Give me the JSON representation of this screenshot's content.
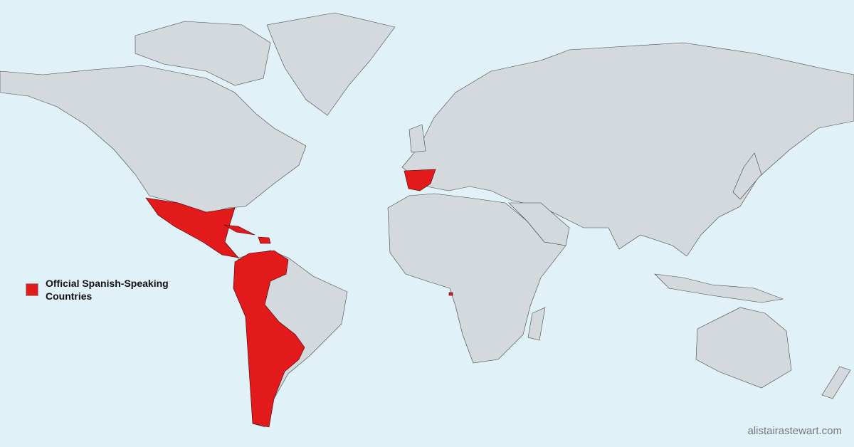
{
  "map": {
    "highlight_color": "#e31a1c",
    "land_color": "#d3d9dc",
    "ocean_color": "#e0f2f8",
    "highlighted_countries": [
      "Mexico",
      "Guatemala",
      "Honduras",
      "El Salvador",
      "Nicaragua",
      "Costa Rica",
      "Panama",
      "Cuba",
      "Dominican Republic",
      "Colombia",
      "Venezuela",
      "Ecuador",
      "Peru",
      "Bolivia",
      "Paraguay",
      "Chile",
      "Argentina",
      "Uruguay",
      "Spain",
      "Equatorial Guinea"
    ]
  },
  "legend": {
    "label": "Official Spanish-Speaking Countries"
  },
  "credit": "alistairastewart.com"
}
